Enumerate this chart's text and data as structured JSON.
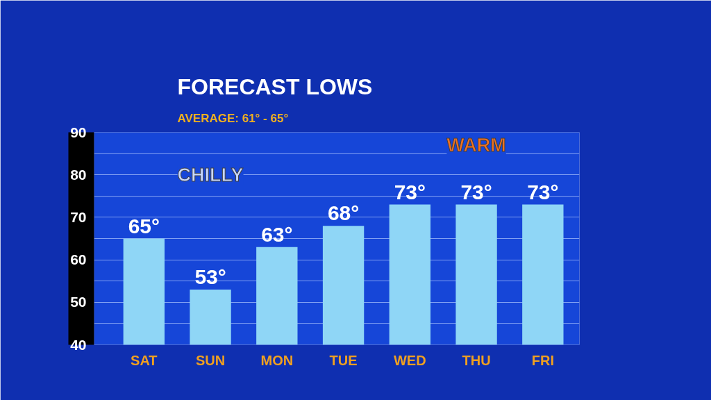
{
  "chart_data": {
    "type": "bar",
    "title": "FORECAST LOWS",
    "subtitle": "AVERAGE: 61° -  65°",
    "categories": [
      "SAT",
      "SUN",
      "MON",
      "TUE",
      "WED",
      "THU",
      "FRI"
    ],
    "series": [
      {
        "color": "#8fd6f6",
        "values": [
          65,
          53,
          63,
          68,
          73,
          73,
          73
        ],
        "value_labels": [
          "65°",
          "53°",
          "63°",
          "68°",
          "73°",
          "73°",
          "73°"
        ]
      }
    ],
    "ylim": [
      40,
      90
    ],
    "yticks": [
      40,
      {
        "value": 45,
        "label": null
      },
      50,
      {
        "value": 55,
        "label": null
      },
      60,
      {
        "value": 65,
        "label": null
      },
      70,
      {
        "value": 75,
        "label": null
      },
      80,
      {
        "value": 85,
        "label": null
      },
      90
    ],
    "grid": "y",
    "annotations": [
      "CHILLY",
      "WARM"
    ]
  }
}
